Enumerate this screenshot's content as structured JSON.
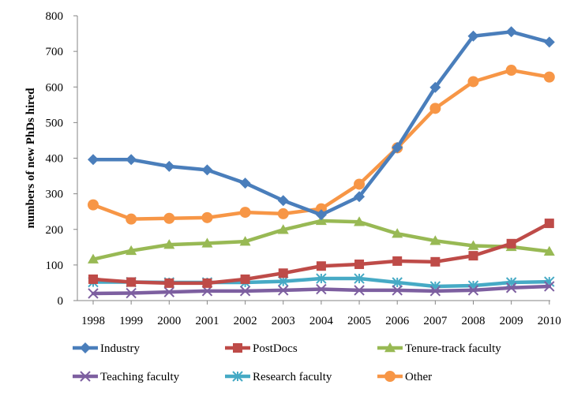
{
  "chart_data": {
    "type": "line",
    "title": "",
    "xlabel": "",
    "ylabel": "numbers of new PhDs hired",
    "ylim": [
      0,
      800
    ],
    "yticks": [
      0,
      100,
      200,
      300,
      400,
      500,
      600,
      700,
      800
    ],
    "grid": false,
    "legend_position": "bottom",
    "x": [
      "1998",
      "1999",
      "2000",
      "2001",
      "2002",
      "2003",
      "2004",
      "2005",
      "2006",
      "2007",
      "2008",
      "2009",
      "2010"
    ],
    "series": [
      {
        "name": "Industry",
        "color": "#4a7ebb",
        "marker": "diamond",
        "values": [
          396,
          396,
          377,
          367,
          330,
          281,
          241,
          292,
          430,
          599,
          743,
          755,
          726
        ]
      },
      {
        "name": "PostDocs",
        "color": "#be4b48",
        "marker": "square",
        "values": [
          60,
          52,
          49,
          49,
          60,
          77,
          97,
          102,
          111,
          109,
          126,
          160,
          217
        ]
      },
      {
        "name": "Tenure-track faculty",
        "color": "#98b954",
        "marker": "triangle",
        "values": [
          116,
          140,
          157,
          161,
          166,
          199,
          224,
          221,
          188,
          168,
          154,
          151,
          138
        ]
      },
      {
        "name": "Teaching faculty",
        "color": "#7d5fa0",
        "marker": "x",
        "values": [
          20,
          21,
          24,
          27,
          27,
          29,
          32,
          29,
          29,
          27,
          29,
          36,
          40
        ]
      },
      {
        "name": "Research faculty",
        "color": "#46aac5",
        "marker": "star",
        "values": [
          52,
          52,
          51,
          51,
          51,
          54,
          62,
          62,
          51,
          40,
          42,
          51,
          53
        ]
      },
      {
        "name": "Other",
        "color": "#f79646",
        "marker": "circle",
        "values": [
          269,
          229,
          231,
          233,
          248,
          244,
          258,
          327,
          429,
          540,
          615,
          647,
          628
        ]
      }
    ]
  }
}
